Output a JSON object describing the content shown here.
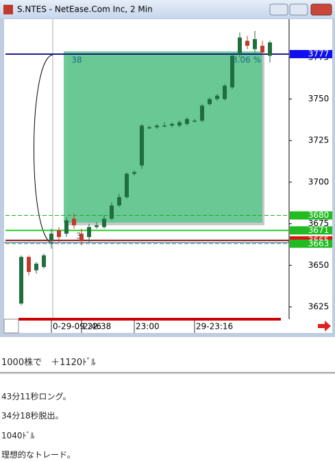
{
  "window": {
    "title": "S.NTES - NetEase.Com Inc, 2 Min"
  },
  "chart_data": {
    "type": "candlestick",
    "categories": [
      null,
      null,
      null,
      null,
      "0-29-09 22:38",
      null,
      null,
      null,
      "2:46",
      null,
      null,
      null,
      null,
      null,
      null,
      "23:00",
      null,
      null,
      null,
      null,
      null,
      null,
      null,
      "29-23:16",
      null,
      null,
      null,
      null,
      null,
      null,
      null,
      null,
      null,
      null
    ],
    "open": [
      3627,
      3655,
      3647,
      3649,
      3665,
      3671,
      3669,
      3678,
      3669,
      3667,
      3673,
      3673,
      3678,
      3686,
      3691,
      3705,
      3710,
      3733,
      3733,
      3734,
      3734,
      3734,
      3735,
      3737,
      3737,
      3747,
      3750,
      3750,
      3757,
      3777,
      3785,
      3780,
      3782,
      3776
    ],
    "high": [
      3656,
      3656,
      3652,
      3657,
      3672,
      3673,
      3679,
      3681,
      3672,
      3675,
      3676,
      3680,
      3688,
      3693,
      3706,
      3707,
      3735,
      3734,
      3735,
      3736,
      3736,
      3737,
      3739,
      3738,
      3747,
      3751,
      3753,
      3759,
      3777,
      3790,
      3788,
      3791,
      3785,
      3785
    ],
    "low": [
      3626,
      3644,
      3645,
      3648,
      3660,
      3664,
      3667,
      3672,
      3662,
      3664,
      3672,
      3672,
      3677,
      3685,
      3690,
      3704,
      3708,
      3732,
      3732,
      3733,
      3733,
      3733,
      3734,
      3736,
      3736,
      3746,
      3749,
      3749,
      3756,
      3775,
      3780,
      3778,
      3777,
      3772
    ],
    "close": [
      3655,
      3646,
      3651,
      3656,
      3669,
      3667,
      3677,
      3674,
      3665,
      3673,
      3674,
      3678,
      3686,
      3691,
      3705,
      3706,
      3734,
      3733,
      3734,
      3734,
      3735,
      3736,
      3738,
      3737,
      3746,
      3750,
      3752,
      3758,
      3776,
      3787,
      3782,
      3786,
      3778,
      3784
    ],
    "up_color": "#1e6e3e",
    "down_color": "#c0392b",
    "ylim": [
      3618,
      3798
    ],
    "yticks": [
      3625,
      3650,
      3675,
      3700,
      3725,
      3750,
      3775
    ],
    "levels": [
      {
        "value": 3777,
        "color": "#1a1a8c",
        "dashed": false
      },
      {
        "value": 3680,
        "color": "#22aa22",
        "dashed": true
      },
      {
        "value": 3663,
        "color": "#22aa22",
        "dashed": true
      },
      {
        "value": 3671,
        "color": "#22cc22",
        "dashed": false
      },
      {
        "value": 3665,
        "color": "#8b1a1a",
        "dashed": false
      }
    ],
    "price_markers": [
      {
        "value": 3680,
        "color": "#22bb22"
      },
      {
        "value": 3671,
        "color": "#22bb22"
      },
      {
        "value": 3665,
        "color": "#dd1111"
      },
      {
        "value": 3663,
        "color": "#22bb22"
      },
      {
        "value": 3777,
        "color": "#1010ee"
      }
    ],
    "annotations": [
      "38",
      "3.06 %",
      "3"
    ]
  },
  "post": {
    "headline": "1000株で　＋1120ﾄﾞﾙ",
    "lines": [
      "43分11秒ロング。",
      "34分18秒脱出。",
      "1040ﾄﾞﾙ",
      "理想的なトレード。"
    ]
  }
}
